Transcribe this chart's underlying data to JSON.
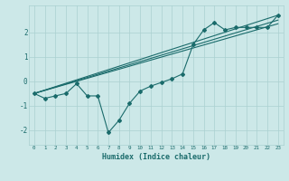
{
  "xlabel": "Humidex (Indice chaleur)",
  "x": [
    0,
    1,
    2,
    3,
    4,
    5,
    6,
    7,
    8,
    9,
    10,
    11,
    12,
    13,
    14,
    15,
    16,
    17,
    18,
    19,
    20,
    21,
    22,
    23
  ],
  "line1": [
    -0.5,
    -0.7,
    -0.6,
    -0.5,
    -0.1,
    -0.6,
    -0.6,
    -2.1,
    -1.6,
    -0.9,
    -0.4,
    -0.2,
    -0.05,
    0.1,
    0.3,
    1.5,
    2.1,
    2.4,
    2.1,
    2.2,
    2.2,
    2.2,
    2.2,
    2.7
  ],
  "line2_x": [
    0,
    23
  ],
  "line2_y": [
    -0.5,
    2.7
  ],
  "line3_x": [
    0,
    23
  ],
  "line3_y": [
    -0.5,
    2.5
  ],
  "line4_x": [
    0,
    23
  ],
  "line4_y": [
    -0.5,
    2.35
  ],
  "line_color": "#1a6b6b",
  "bg_color": "#cce8e8",
  "grid_color": "#aad0d0",
  "ylim": [
    -2.6,
    3.1
  ],
  "xlim": [
    -0.5,
    23.5
  ],
  "yticks": [
    -2,
    -1,
    0,
    1,
    2
  ],
  "xticks": [
    0,
    1,
    2,
    3,
    4,
    5,
    6,
    7,
    8,
    9,
    10,
    11,
    12,
    13,
    14,
    15,
    16,
    17,
    18,
    19,
    20,
    21,
    22,
    23
  ]
}
